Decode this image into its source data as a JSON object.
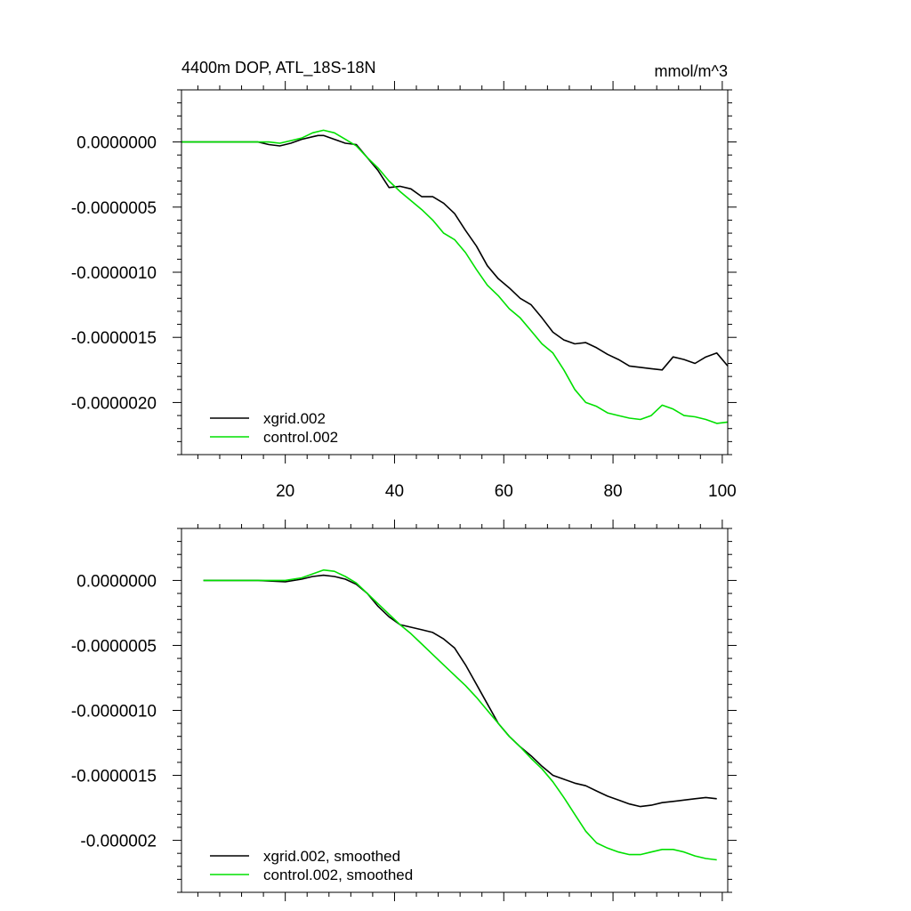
{
  "chart_data": [
    {
      "type": "line",
      "title": "4400m DOP, ATL_18S-18N",
      "units": "mmol/m^3",
      "xlim": [
        1,
        101
      ],
      "ylim": [
        -2.4e-06,
        4e-07
      ],
      "xticks": [
        20,
        40,
        60,
        80,
        100
      ],
      "xtick_labels": [
        "20",
        "40",
        "60",
        "80",
        "100"
      ],
      "yticks": [
        0,
        -5e-07,
        -1e-06,
        -1.5e-06,
        -2e-06
      ],
      "ytick_labels": [
        "0.0000000",
        "-0.0000005",
        "-0.0000010",
        "-0.0000015",
        "-0.0000020"
      ],
      "legend_location": "bottom-left",
      "series": [
        {
          "name": "xgrid.002",
          "color": "#000000",
          "x": [
            1,
            5,
            10,
            15,
            17,
            19,
            21,
            23,
            25,
            26,
            27,
            29,
            31,
            33,
            35,
            37,
            39,
            41,
            43,
            45,
            47,
            49,
            51,
            53,
            55,
            57,
            59,
            61,
            63,
            65,
            67,
            69,
            71,
            73,
            75,
            77,
            79,
            81,
            83,
            85,
            87,
            89,
            91,
            93,
            95,
            97,
            99,
            101
          ],
          "values": [
            0,
            0,
            0,
            0,
            -2e-08,
            -3e-08,
            -1e-08,
            2e-08,
            4e-08,
            5e-08,
            5e-08,
            2e-08,
            -1e-08,
            -2e-08,
            -1.2e-07,
            -2.2e-07,
            -3.5e-07,
            -3.4e-07,
            -3.6e-07,
            -4.2e-07,
            -4.2e-07,
            -4.7e-07,
            -5.5e-07,
            -6.8e-07,
            -8e-07,
            -9.5e-07,
            -1.05e-06,
            -1.12e-06,
            -1.2e-06,
            -1.25e-06,
            -1.35e-06,
            -1.46e-06,
            -1.52e-06,
            -1.55e-06,
            -1.54e-06,
            -1.58e-06,
            -1.63e-06,
            -1.67e-06,
            -1.72e-06,
            -1.73e-06,
            -1.74e-06,
            -1.75e-06,
            -1.65e-06,
            -1.67e-06,
            -1.7e-06,
            -1.65e-06,
            -1.62e-06,
            -1.72e-06
          ]
        },
        {
          "name": "control.002",
          "color": "#00e000",
          "x": [
            1,
            5,
            10,
            15,
            17,
            19,
            21,
            23,
            25,
            27,
            29,
            31,
            33,
            35,
            37,
            39,
            41,
            43,
            45,
            47,
            49,
            51,
            53,
            55,
            57,
            59,
            61,
            63,
            65,
            67,
            69,
            71,
            73,
            75,
            77,
            79,
            81,
            83,
            85,
            87,
            89,
            91,
            93,
            95,
            97,
            99,
            101
          ],
          "values": [
            0,
            0,
            0,
            0,
            0,
            -1e-08,
            1e-08,
            3e-08,
            7e-08,
            9e-08,
            7e-08,
            2e-08,
            -3e-08,
            -1.2e-07,
            -2e-07,
            -3e-07,
            -3.8e-07,
            -4.5e-07,
            -5.2e-07,
            -6e-07,
            -7e-07,
            -7.5e-07,
            -8.5e-07,
            -9.8e-07,
            -1.1e-06,
            -1.18e-06,
            -1.28e-06,
            -1.35e-06,
            -1.45e-06,
            -1.55e-06,
            -1.62e-06,
            -1.75e-06,
            -1.9e-06,
            -2e-06,
            -2.03e-06,
            -2.08e-06,
            -2.1e-06,
            -2.12e-06,
            -2.13e-06,
            -2.1e-06,
            -2.02e-06,
            -2.05e-06,
            -2.1e-06,
            -2.11e-06,
            -2.13e-06,
            -2.16e-06,
            -2.15e-06
          ]
        }
      ]
    },
    {
      "type": "line",
      "title": "",
      "xlim": [
        1,
        101
      ],
      "ylim": [
        -2.4e-06,
        4e-07
      ],
      "xticks": [
        20,
        40,
        60,
        80,
        100
      ],
      "xtick_labels": [],
      "yticks": [
        0,
        -5e-07,
        -1e-06,
        -1.5e-06,
        -2e-06
      ],
      "ytick_labels": [
        "0.0000000",
        "-0.0000005",
        "-0.0000010",
        "-0.0000015",
        "-0.000002"
      ],
      "legend_location": "bottom-left",
      "series": [
        {
          "name": "xgrid.002, smoothed",
          "color": "#000000",
          "x": [
            5,
            10,
            15,
            20,
            23,
            25,
            27,
            29,
            31,
            33,
            35,
            37,
            39,
            41,
            43,
            45,
            47,
            49,
            51,
            53,
            55,
            57,
            59,
            61,
            63,
            65,
            67,
            69,
            71,
            73,
            75,
            77,
            79,
            81,
            83,
            85,
            87,
            89,
            91,
            93,
            95,
            97,
            99
          ],
          "values": [
            0,
            0,
            0,
            -1e-08,
            1e-08,
            3e-08,
            4e-08,
            3e-08,
            1e-08,
            -3e-08,
            -1e-07,
            -2e-07,
            -2.8e-07,
            -3.4e-07,
            -3.6e-07,
            -3.8e-07,
            -4e-07,
            -4.5e-07,
            -5.2e-07,
            -6.5e-07,
            -8e-07,
            -9.5e-07,
            -1.1e-06,
            -1.2e-06,
            -1.28e-06,
            -1.35e-06,
            -1.43e-06,
            -1.5e-06,
            -1.53e-06,
            -1.56e-06,
            -1.58e-06,
            -1.62e-06,
            -1.66e-06,
            -1.69e-06,
            -1.72e-06,
            -1.74e-06,
            -1.73e-06,
            -1.71e-06,
            -1.7e-06,
            -1.69e-06,
            -1.68e-06,
            -1.67e-06,
            -1.68e-06
          ]
        },
        {
          "name": "control.002, smoothed",
          "color": "#00e000",
          "x": [
            5,
            10,
            15,
            20,
            23,
            25,
            27,
            29,
            31,
            33,
            35,
            37,
            39,
            41,
            43,
            45,
            47,
            49,
            51,
            53,
            55,
            57,
            59,
            61,
            63,
            65,
            67,
            69,
            71,
            73,
            75,
            77,
            79,
            81,
            83,
            85,
            87,
            89,
            91,
            93,
            95,
            97,
            99
          ],
          "values": [
            0,
            0,
            0,
            0,
            2e-08,
            5e-08,
            8e-08,
            7e-08,
            3e-08,
            -2e-08,
            -1e-07,
            -1.8e-07,
            -2.6e-07,
            -3.4e-07,
            -4.1e-07,
            -4.9e-07,
            -5.7e-07,
            -6.5e-07,
            -7.3e-07,
            -8.1e-07,
            -9e-07,
            -1e-06,
            -1.1e-06,
            -1.2e-06,
            -1.28e-06,
            -1.37e-06,
            -1.45e-06,
            -1.55e-06,
            -1.67e-06,
            -1.8e-06,
            -1.93e-06,
            -2.02e-06,
            -2.06e-06,
            -2.09e-06,
            -2.11e-06,
            -2.11e-06,
            -2.09e-06,
            -2.07e-06,
            -2.07e-06,
            -2.09e-06,
            -2.12e-06,
            -2.14e-06,
            -2.15e-06
          ]
        }
      ]
    }
  ]
}
